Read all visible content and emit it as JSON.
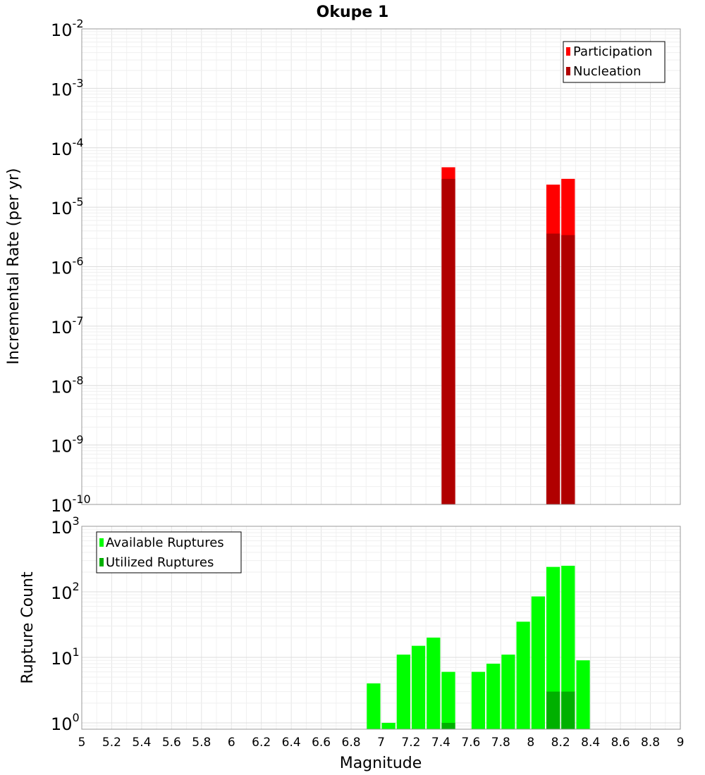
{
  "chart_data": [
    {
      "type": "bar",
      "title": "Okupe 1",
      "xlabel": "",
      "ylabel": "Incremental Rate (per yr)",
      "y_scale": "log",
      "xlim": [
        5,
        9
      ],
      "ylim": [
        1e-10,
        0.01
      ],
      "y_tick_labels": [
        {
          "base": "10",
          "exp": "-10"
        },
        {
          "base": "10",
          "exp": "-9"
        },
        {
          "base": "10",
          "exp": "-8"
        },
        {
          "base": "10",
          "exp": "-7"
        },
        {
          "base": "10",
          "exp": "-6"
        },
        {
          "base": "10",
          "exp": "-5"
        },
        {
          "base": "10",
          "exp": "-4"
        },
        {
          "base": "10",
          "exp": "-3"
        },
        {
          "base": "10",
          "exp": "-2"
        }
      ],
      "legend": {
        "position": "top-right",
        "entries": [
          "Participation",
          "Nucleation"
        ]
      },
      "grid": true,
      "bin_width": 0.1,
      "series": [
        {
          "name": "Participation",
          "color": "#ff0000",
          "x": [
            7.45,
            8.15,
            8.25
          ],
          "values": [
            4.7e-05,
            2.4e-05,
            3e-05
          ]
        },
        {
          "name": "Nucleation",
          "color": "#b00000",
          "x": [
            7.45,
            8.15,
            8.25
          ],
          "values": [
            3e-05,
            3.6e-06,
            3.4e-06
          ]
        }
      ]
    },
    {
      "type": "bar",
      "title": "",
      "xlabel": "Magnitude",
      "ylabel": "Rupture Count",
      "y_scale": "log",
      "xlim": [
        5,
        9
      ],
      "ylim": [
        0.8,
        1000
      ],
      "x_tick_labels": [
        "5",
        "5.2",
        "5.4",
        "5.6",
        "5.8",
        "6",
        "6.2",
        "6.4",
        "6.6",
        "6.8",
        "7",
        "7.2",
        "7.4",
        "7.6",
        "7.8",
        "8",
        "8.2",
        "8.4",
        "8.6",
        "8.8",
        "9"
      ],
      "y_tick_labels": [
        {
          "base": "10",
          "exp": "0"
        },
        {
          "base": "10",
          "exp": "1"
        },
        {
          "base": "10",
          "exp": "2"
        },
        {
          "base": "10",
          "exp": "3"
        }
      ],
      "legend": {
        "position": "top-left",
        "entries": [
          "Available Ruptures",
          "Utilized Ruptures"
        ]
      },
      "grid": true,
      "bin_width": 0.1,
      "series": [
        {
          "name": "Available Ruptures",
          "color": "#00ff00",
          "x": [
            6.95,
            7.05,
            7.15,
            7.25,
            7.35,
            7.45,
            7.65,
            7.75,
            7.85,
            7.95,
            8.05,
            8.15,
            8.25,
            8.35
          ],
          "values": [
            4,
            1,
            11,
            15,
            20,
            6,
            6,
            8,
            11,
            35,
            85,
            240,
            250,
            9
          ]
        },
        {
          "name": "Utilized Ruptures",
          "color": "#00b000",
          "x": [
            7.45,
            8.15,
            8.25
          ],
          "values": [
            1,
            3,
            3
          ]
        }
      ]
    }
  ]
}
